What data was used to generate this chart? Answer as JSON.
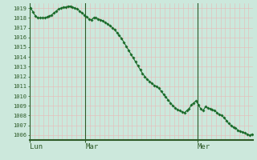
{
  "bg_color": "#cce8dc",
  "grid_color_h": "#b8d8cc",
  "grid_color_v": "#e8b8b8",
  "line_color": "#1a6b2a",
  "marker_color": "#1a6b2a",
  "axis_label_color": "#2d5a27",
  "tick_label_color": "#2d5a27",
  "border_color": "#2d5a27",
  "ylim": [
    1005.5,
    1019.5
  ],
  "yticks": [
    1006,
    1007,
    1008,
    1009,
    1010,
    1011,
    1012,
    1013,
    1014,
    1015,
    1016,
    1017,
    1018,
    1019
  ],
  "day_labels": [
    "Lun",
    "Mar",
    "Mer"
  ],
  "day_positions": [
    0,
    24,
    72
  ],
  "pressure": [
    1019.0,
    1018.6,
    1018.2,
    1018.0,
    1018.0,
    1018.0,
    1018.0,
    1018.1,
    1018.2,
    1018.3,
    1018.5,
    1018.7,
    1018.9,
    1019.0,
    1019.1,
    1019.1,
    1019.2,
    1019.2,
    1019.1,
    1019.0,
    1018.9,
    1018.7,
    1018.5,
    1018.3,
    1018.1,
    1017.9,
    1017.8,
    1018.0,
    1018.0,
    1017.9,
    1017.8,
    1017.7,
    1017.5,
    1017.4,
    1017.2,
    1017.0,
    1016.8,
    1016.5,
    1016.2,
    1015.9,
    1015.5,
    1015.1,
    1014.7,
    1014.3,
    1013.9,
    1013.5,
    1013.1,
    1012.7,
    1012.3,
    1012.0,
    1011.7,
    1011.5,
    1011.3,
    1011.1,
    1011.0,
    1010.8,
    1010.5,
    1010.2,
    1009.9,
    1009.6,
    1009.3,
    1009.0,
    1008.8,
    1008.6,
    1008.5,
    1008.4,
    1008.3,
    1008.5,
    1008.7,
    1009.1,
    1009.3,
    1009.5,
    1009.1,
    1008.7,
    1008.5,
    1008.9,
    1008.8,
    1008.7,
    1008.6,
    1008.5,
    1008.3,
    1008.1,
    1008.0,
    1007.8,
    1007.5,
    1007.2,
    1007.0,
    1006.8,
    1006.7,
    1006.5,
    1006.4,
    1006.3,
    1006.2,
    1006.1,
    1006.0,
    1006.1
  ]
}
